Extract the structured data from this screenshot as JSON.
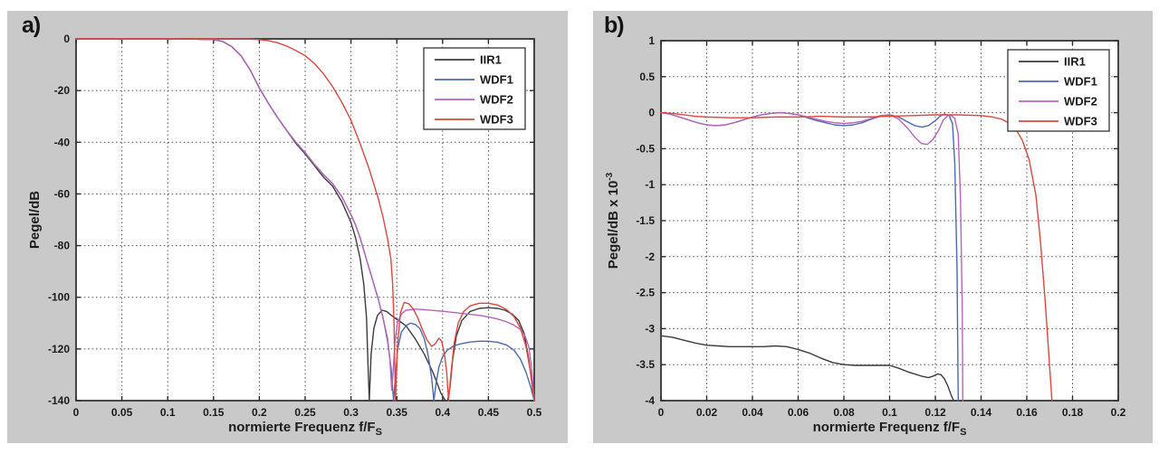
{
  "colors": {
    "panel_bg": "#c9c9c9",
    "plot_bg": "#ffffff",
    "axis": "#2b2b2b",
    "grid": "#3c3c3c",
    "series": {
      "IIR1": "#3c3c3c",
      "WDF1": "#4a6bb2",
      "WDF2": "#b964bb",
      "WDF3": "#e1463e"
    }
  },
  "panels": [
    {
      "tag": "a)"
    },
    {
      "tag": "b)"
    }
  ],
  "chart_data": [
    {
      "type": "line",
      "title": "",
      "xlabel": {
        "text": "normierte Frequenz f/F",
        "sub": "S"
      },
      "ylabel": {
        "text": "Pegel/dB",
        "sup": ""
      },
      "xlim": [
        0,
        0.5
      ],
      "ylim": [
        -140,
        0
      ],
      "xticks": [
        "0",
        "0.05",
        "0.1",
        "0.15",
        "0.2",
        "0.25",
        "0.3",
        "0.35",
        "0.4",
        "0.45",
        "0.5"
      ],
      "yticks": [
        "0",
        "-20",
        "-40",
        "-60",
        "-80",
        "-100",
        "-120",
        "-140"
      ],
      "grid": true,
      "legend": {
        "position": "top-right",
        "entries": [
          "IIR1",
          "WDF1",
          "WDF2",
          "WDF3"
        ]
      },
      "series": [
        {
          "name": "IIR1",
          "color": "#3c3c3c",
          "x": [
            0,
            0.05,
            0.1,
            0.13,
            0.15,
            0.16,
            0.17,
            0.18,
            0.19,
            0.2,
            0.21,
            0.22,
            0.23,
            0.24,
            0.25,
            0.26,
            0.27,
            0.28,
            0.29,
            0.3,
            0.305,
            0.31,
            0.314,
            0.317,
            0.3185,
            0.32,
            0.322,
            0.325,
            0.329,
            0.334,
            0.339,
            0.344,
            0.35,
            0.36,
            0.37,
            0.38,
            0.39,
            0.398,
            0.403,
            0.4055,
            0.408,
            0.411,
            0.415,
            0.421,
            0.43,
            0.44,
            0.45,
            0.46,
            0.468,
            0.476,
            0.483,
            0.489,
            0.494,
            0.5
          ],
          "y": [
            0,
            0,
            0,
            -0.1,
            -0.3,
            -1,
            -3,
            -6.5,
            -12,
            -19,
            -25,
            -30.5,
            -35.5,
            -40.5,
            -44.5,
            -49,
            -53.5,
            -57,
            -63,
            -71,
            -77,
            -85,
            -95,
            -108,
            -125,
            -140,
            -122,
            -112,
            -107,
            -105,
            -105.5,
            -107,
            -108.5,
            -111,
            -116,
            -122,
            -129.5,
            -137,
            -140,
            -140,
            -135,
            -124,
            -115,
            -109,
            -105.5,
            -104.3,
            -104,
            -104.3,
            -105,
            -106.5,
            -109,
            -114,
            -124,
            -140
          ]
        },
        {
          "name": "WDF1",
          "color": "#4a6bb2",
          "x": [
            0,
            0.05,
            0.1,
            0.13,
            0.15,
            0.16,
            0.17,
            0.18,
            0.19,
            0.2,
            0.21,
            0.22,
            0.23,
            0.24,
            0.25,
            0.26,
            0.27,
            0.28,
            0.29,
            0.3,
            0.305,
            0.31,
            0.315,
            0.32,
            0.325,
            0.33,
            0.335,
            0.34,
            0.344,
            0.3465,
            0.3485,
            0.351,
            0.355,
            0.36,
            0.365,
            0.37,
            0.375,
            0.38,
            0.384,
            0.388,
            0.3905,
            0.393,
            0.396,
            0.4,
            0.405,
            0.412,
            0.42,
            0.43,
            0.44,
            0.45,
            0.46,
            0.47,
            0.478,
            0.485,
            0.491,
            0.496,
            0.5
          ],
          "y": [
            0,
            0,
            0,
            -0.1,
            -0.3,
            -1,
            -3,
            -6.5,
            -12,
            -19,
            -25,
            -30.5,
            -35.5,
            -40,
            -44,
            -48.5,
            -52.5,
            -56,
            -61,
            -68,
            -72,
            -77,
            -83,
            -89,
            -95,
            -101,
            -108,
            -117,
            -128,
            -140,
            -131,
            -120,
            -113.5,
            -111,
            -110,
            -110.5,
            -112,
            -116,
            -122,
            -131,
            -140,
            -133,
            -127,
            -123,
            -120.5,
            -118.8,
            -118,
            -117.3,
            -117,
            -117,
            -117.4,
            -118.5,
            -120.5,
            -124,
            -129,
            -134.5,
            -140
          ]
        },
        {
          "name": "WDF2",
          "color": "#b964bb",
          "x": [
            0,
            0.05,
            0.1,
            0.13,
            0.15,
            0.16,
            0.17,
            0.18,
            0.19,
            0.2,
            0.21,
            0.22,
            0.23,
            0.24,
            0.25,
            0.26,
            0.27,
            0.28,
            0.29,
            0.3,
            0.305,
            0.31,
            0.315,
            0.32,
            0.325,
            0.33,
            0.335,
            0.34,
            0.3425,
            0.3445,
            0.346,
            0.348,
            0.351,
            0.355,
            0.36,
            0.37,
            0.38,
            0.39,
            0.4,
            0.41,
            0.42,
            0.43,
            0.44,
            0.45,
            0.46,
            0.47,
            0.478,
            0.485,
            0.49,
            0.494,
            0.497,
            0.5
          ],
          "y": [
            0,
            0,
            0,
            -0.1,
            -0.3,
            -1,
            -3,
            -6.5,
            -12,
            -19,
            -25,
            -30.5,
            -35.5,
            -40,
            -44,
            -48.5,
            -52.5,
            -56,
            -61,
            -68,
            -72,
            -77,
            -83,
            -89,
            -95,
            -101,
            -108,
            -116,
            -124,
            -136,
            -129,
            -117,
            -109.5,
            -106.5,
            -105,
            -104.6,
            -104.8,
            -105.1,
            -105.4,
            -105.8,
            -106.2,
            -106.6,
            -107,
            -107.6,
            -108.4,
            -109.5,
            -110.8,
            -112.5,
            -115,
            -119,
            -127,
            -140
          ]
        },
        {
          "name": "WDF3",
          "color": "#e1463e",
          "x": [
            0,
            0.05,
            0.1,
            0.15,
            0.19,
            0.2,
            0.21,
            0.22,
            0.23,
            0.24,
            0.25,
            0.26,
            0.27,
            0.28,
            0.29,
            0.3,
            0.31,
            0.32,
            0.33,
            0.335,
            0.34,
            0.3435,
            0.3455,
            0.347,
            0.3485,
            0.351,
            0.354,
            0.358,
            0.363,
            0.368,
            0.373,
            0.378,
            0.383,
            0.388,
            0.392,
            0.396,
            0.399,
            0.402,
            0.4045,
            0.4065,
            0.409,
            0.4125,
            0.417,
            0.423,
            0.43,
            0.44,
            0.45,
            0.46,
            0.47,
            0.478,
            0.485,
            0.491,
            0.496,
            0.5
          ],
          "y": [
            0,
            0,
            0,
            0,
            -0.1,
            -0.3,
            -0.7,
            -1.5,
            -2.8,
            -4.5,
            -6.5,
            -9.5,
            -13.5,
            -18.5,
            -24.5,
            -31.5,
            -40.5,
            -50.5,
            -62,
            -69,
            -77.5,
            -85,
            -95,
            -110,
            -140,
            -118,
            -106,
            -102,
            -102.5,
            -104.5,
            -108,
            -112.5,
            -116.5,
            -119,
            -118,
            -115.8,
            -117,
            -122,
            -129,
            -140,
            -130,
            -118,
            -110,
            -105.5,
            -103.3,
            -102.3,
            -102.3,
            -103,
            -104.8,
            -107.5,
            -112,
            -119,
            -129,
            -140
          ]
        }
      ]
    },
    {
      "type": "line",
      "title": "",
      "xlabel": {
        "text": "normierte Frequenz f/F",
        "sub": "S"
      },
      "ylabel": {
        "text": "Pegel/dB x 10",
        "sup": "-3"
      },
      "xlim": [
        0,
        0.2
      ],
      "ylim": [
        -4,
        1
      ],
      "xticks": [
        "0",
        "0.02",
        "0.04",
        "0.06",
        "0.08",
        "0.1",
        "0.12",
        "0.14",
        "0.16",
        "0.18",
        "0.2"
      ],
      "yticks": [
        "1",
        "0.5",
        "0",
        "-0.5",
        "-1",
        "-1.5",
        "-2",
        "-2.5",
        "-3",
        "-3.5",
        "-4"
      ],
      "grid": true,
      "legend": {
        "position": "top-right",
        "entries": [
          "IIR1",
          "WDF1",
          "WDF2",
          "WDF3"
        ]
      },
      "series": [
        {
          "name": "IIR1",
          "color": "#3c3c3c",
          "x": [
            0,
            0.005,
            0.01,
            0.015,
            0.02,
            0.025,
            0.03,
            0.035,
            0.04,
            0.045,
            0.05,
            0.055,
            0.06,
            0.065,
            0.07,
            0.075,
            0.08,
            0.085,
            0.09,
            0.095,
            0.1,
            0.104,
            0.108,
            0.111,
            0.114,
            0.117,
            0.119,
            0.121,
            0.1225,
            0.124,
            0.1255,
            0.127,
            0.128
          ],
          "y": [
            -3.1,
            -3.12,
            -3.16,
            -3.2,
            -3.23,
            -3.24,
            -3.25,
            -3.25,
            -3.25,
            -3.25,
            -3.24,
            -3.25,
            -3.29,
            -3.34,
            -3.41,
            -3.47,
            -3.5,
            -3.51,
            -3.51,
            -3.51,
            -3.51,
            -3.55,
            -3.6,
            -3.63,
            -3.66,
            -3.68,
            -3.66,
            -3.63,
            -3.64,
            -3.7,
            -3.8,
            -3.93,
            -4.0
          ]
        },
        {
          "name": "WDF1",
          "color": "#4a6bb2",
          "x": [
            0,
            0.004,
            0.008,
            0.012,
            0.016,
            0.02,
            0.024,
            0.028,
            0.032,
            0.036,
            0.04,
            0.044,
            0.048,
            0.052,
            0.056,
            0.06,
            0.064,
            0.068,
            0.072,
            0.076,
            0.08,
            0.084,
            0.088,
            0.092,
            0.096,
            0.1,
            0.104,
            0.108,
            0.111,
            0.114,
            0.117,
            0.12,
            0.122,
            0.124,
            0.126,
            0.1275,
            0.1285,
            0.1295,
            0.13
          ],
          "y": [
            0,
            -0.02,
            -0.06,
            -0.1,
            -0.14,
            -0.17,
            -0.18,
            -0.17,
            -0.14,
            -0.1,
            -0.06,
            -0.03,
            -0.01,
            0,
            -0.01,
            -0.03,
            -0.07,
            -0.11,
            -0.14,
            -0.17,
            -0.18,
            -0.17,
            -0.14,
            -0.09,
            -0.05,
            -0.03,
            -0.06,
            -0.13,
            -0.18,
            -0.2,
            -0.18,
            -0.11,
            -0.05,
            -0.02,
            -0.04,
            -0.15,
            -0.7,
            -2.2,
            -4.0
          ]
        },
        {
          "name": "WDF2",
          "color": "#b964bb",
          "x": [
            0,
            0.004,
            0.008,
            0.012,
            0.016,
            0.02,
            0.024,
            0.028,
            0.032,
            0.036,
            0.04,
            0.044,
            0.048,
            0.052,
            0.056,
            0.06,
            0.064,
            0.068,
            0.072,
            0.076,
            0.08,
            0.084,
            0.088,
            0.092,
            0.096,
            0.1,
            0.104,
            0.108,
            0.111,
            0.114,
            0.1165,
            0.119,
            0.1215,
            0.1235,
            0.1255,
            0.127,
            0.1285,
            0.13,
            0.131,
            0.1318,
            0.132
          ],
          "y": [
            0,
            -0.02,
            -0.06,
            -0.1,
            -0.14,
            -0.17,
            -0.18,
            -0.17,
            -0.14,
            -0.1,
            -0.06,
            -0.03,
            -0.01,
            0,
            -0.01,
            -0.03,
            -0.06,
            -0.09,
            -0.12,
            -0.14,
            -0.15,
            -0.14,
            -0.12,
            -0.08,
            -0.04,
            -0.03,
            -0.09,
            -0.22,
            -0.34,
            -0.43,
            -0.44,
            -0.37,
            -0.24,
            -0.1,
            -0.04,
            -0.04,
            -0.08,
            -0.3,
            -1.2,
            -2.8,
            -4.0
          ]
        },
        {
          "name": "WDF3",
          "color": "#e1463e",
          "x": [
            0,
            0.005,
            0.01,
            0.015,
            0.02,
            0.03,
            0.04,
            0.05,
            0.06,
            0.07,
            0.08,
            0.09,
            0.1,
            0.11,
            0.12,
            0.13,
            0.14,
            0.145,
            0.149,
            0.152,
            0.155,
            0.158,
            0.161,
            0.164,
            0.166,
            0.168,
            0.1695,
            0.171
          ],
          "y": [
            0,
            -0.01,
            -0.03,
            -0.05,
            -0.06,
            -0.07,
            -0.07,
            -0.06,
            -0.06,
            -0.05,
            -0.06,
            -0.06,
            -0.05,
            -0.04,
            -0.03,
            -0.03,
            -0.04,
            -0.06,
            -0.09,
            -0.14,
            -0.22,
            -0.38,
            -0.65,
            -1.15,
            -1.8,
            -2.6,
            -3.3,
            -4.0
          ]
        }
      ]
    }
  ]
}
